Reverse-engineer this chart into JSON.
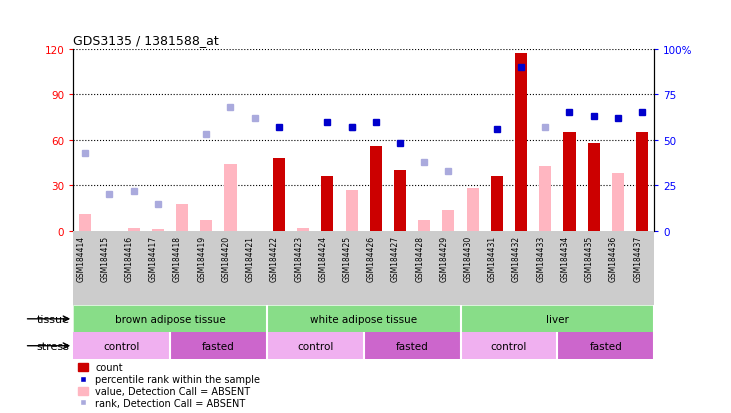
{
  "title": "GDS3135 / 1381588_at",
  "samples": [
    "GSM184414",
    "GSM184415",
    "GSM184416",
    "GSM184417",
    "GSM184418",
    "GSM184419",
    "GSM184420",
    "GSM184421",
    "GSM184422",
    "GSM184423",
    "GSM184424",
    "GSM184425",
    "GSM184426",
    "GSM184427",
    "GSM184428",
    "GSM184429",
    "GSM184430",
    "GSM184431",
    "GSM184432",
    "GSM184433",
    "GSM184434",
    "GSM184435",
    "GSM184436",
    "GSM184437"
  ],
  "count": [
    null,
    null,
    null,
    null,
    null,
    null,
    null,
    null,
    48,
    null,
    36,
    null,
    56,
    40,
    null,
    null,
    null,
    36,
    117,
    null,
    65,
    58,
    null,
    65
  ],
  "count_absent": [
    11,
    null,
    2,
    1,
    18,
    7,
    44,
    null,
    null,
    2,
    null,
    27,
    null,
    null,
    7,
    14,
    28,
    null,
    null,
    43,
    null,
    null,
    38,
    null
  ],
  "rank": [
    null,
    null,
    null,
    null,
    null,
    null,
    null,
    null,
    57,
    null,
    60,
    57,
    60,
    48,
    null,
    null,
    null,
    56,
    90,
    null,
    65,
    63,
    62,
    65
  ],
  "rank_absent": [
    43,
    20,
    22,
    15,
    null,
    53,
    68,
    62,
    null,
    null,
    null,
    57,
    null,
    null,
    38,
    33,
    null,
    null,
    null,
    57,
    null,
    null,
    null,
    null
  ],
  "tissue_groups": [
    {
      "label": "brown adipose tissue",
      "start": 0,
      "end": 8
    },
    {
      "label": "white adipose tissue",
      "start": 8,
      "end": 16
    },
    {
      "label": "liver",
      "start": 16,
      "end": 24
    }
  ],
  "stress_groups": [
    {
      "label": "control",
      "start": 0,
      "end": 4
    },
    {
      "label": "fasted",
      "start": 4,
      "end": 8
    },
    {
      "label": "control",
      "start": 8,
      "end": 12
    },
    {
      "label": "fasted",
      "start": 12,
      "end": 16
    },
    {
      "label": "control",
      "start": 16,
      "end": 20
    },
    {
      "label": "fasted",
      "start": 20,
      "end": 24
    }
  ],
  "ylim_left": [
    0,
    120
  ],
  "ylim_right": [
    0,
    100
  ],
  "yticks_left": [
    0,
    30,
    60,
    90,
    120
  ],
  "yticks_right": [
    0,
    25,
    50,
    75,
    100
  ],
  "bar_color_present": "#cc0000",
  "bar_color_absent": "#ffb6c1",
  "rank_color_present": "#0000cc",
  "rank_color_absent": "#aaaadd",
  "tissue_color": "#88dd88",
  "stress_control_color": "#f0b0f0",
  "stress_fasted_color": "#cc66cc",
  "xtick_bg": "#cccccc",
  "grid_linestyle": "dotted",
  "bar_width": 0.5
}
